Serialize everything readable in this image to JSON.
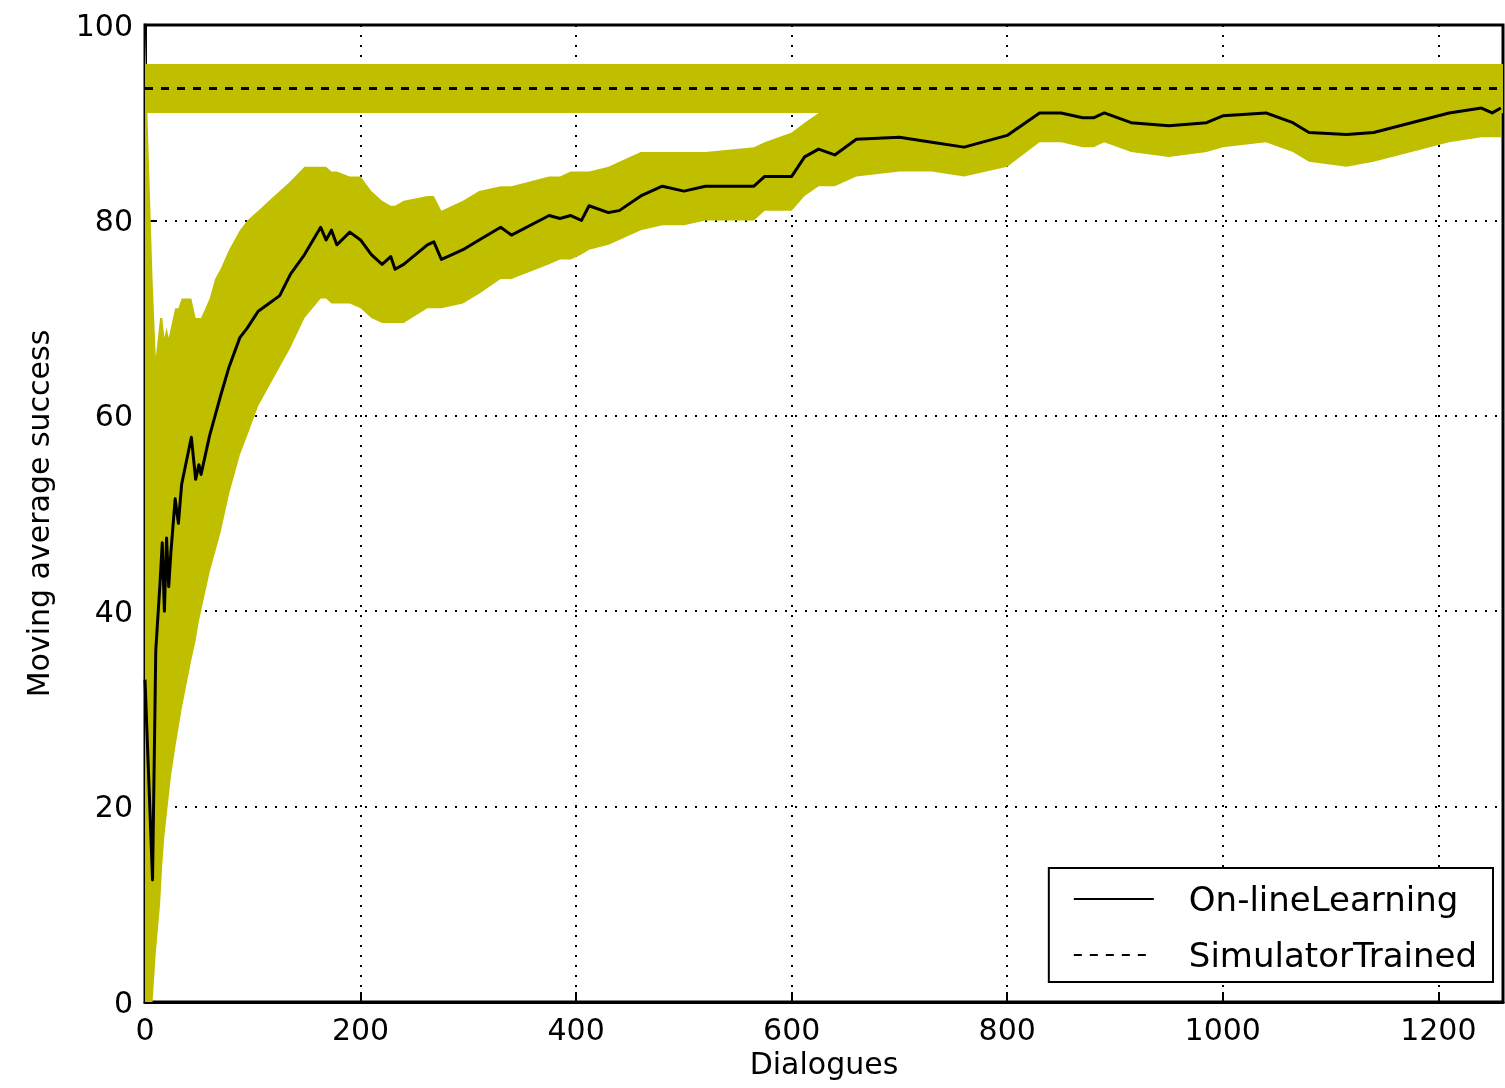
{
  "chart_data": {
    "type": "line",
    "xlabel": "Dialogues",
    "ylabel": "Moving average success",
    "xlim": [
      0,
      1260
    ],
    "xticks": [
      0,
      200,
      400,
      600,
      800,
      1000,
      1200
    ],
    "ylim": [
      0,
      100
    ],
    "yticks": [
      0,
      20,
      40,
      60,
      80,
      100
    ],
    "grid": true,
    "legend": "bottom right",
    "marker": "none",
    "series": [
      {
        "name": "On-lineLearning",
        "color": "#000000",
        "line_style": "solid",
        "x": [
          0,
          7,
          10,
          14,
          16,
          18,
          20,
          22,
          24,
          28,
          31,
          34,
          43,
          47,
          50,
          52,
          56,
          60,
          65,
          70,
          78,
          88,
          95,
          105,
          115,
          125,
          135,
          148,
          163,
          168,
          173,
          178,
          190,
          200,
          210,
          220,
          228,
          232,
          240,
          262,
          268,
          275,
          295,
          310,
          330,
          340,
          375,
          385,
          395,
          405,
          412,
          430,
          440,
          460,
          480,
          500,
          520,
          565,
          575,
          600,
          612,
          625,
          640,
          660,
          700,
          730,
          760,
          800,
          830,
          850,
          870,
          880,
          890,
          915,
          950,
          985,
          1000,
          1040,
          1065,
          1080,
          1115,
          1140,
          1175,
          1210,
          1240,
          1250,
          1258
        ],
        "values": [
          33,
          12.5,
          36,
          43,
          47,
          40,
          47.5,
          42.5,
          46,
          51.5,
          49,
          53,
          57.8,
          53.5,
          55,
          54,
          56,
          58,
          60,
          62,
          65,
          68,
          69,
          70.7,
          71.5,
          72.3,
          74.5,
          76.5,
          79.3,
          78,
          79,
          77.5,
          78.8,
          78,
          76.5,
          75.5,
          76.3,
          75,
          75.5,
          77.5,
          77.8,
          76,
          77,
          78,
          79.3,
          78.5,
          80.5,
          80.2,
          80.5,
          80,
          81.5,
          80.8,
          81,
          82.5,
          83.5,
          83,
          83.5,
          83.5,
          84.5,
          84.5,
          86.5,
          87.3,
          86.7,
          88.3,
          88.5,
          88,
          87.5,
          88.7,
          91,
          91,
          90.5,
          90.5,
          91,
          90,
          89.7,
          90,
          90.7,
          91,
          90,
          89,
          88.8,
          89,
          90,
          91,
          91.5,
          91,
          91.5
        ],
        "lower": [
          0,
          0,
          5,
          10,
          14,
          17,
          19,
          21,
          23,
          26,
          28,
          30,
          35,
          37,
          39,
          40,
          42,
          44,
          46,
          48,
          52,
          56,
          58,
          61,
          63,
          65,
          67,
          70,
          72,
          72,
          71.5,
          71.5,
          71.5,
          71,
          70,
          69.5,
          69.5,
          69.5,
          69.5,
          71,
          71,
          71,
          71.5,
          72.5,
          74,
          74,
          75.5,
          76,
          76,
          76.5,
          77,
          77.5,
          78,
          79,
          79.5,
          79.5,
          80,
          80,
          81,
          81,
          82.5,
          83.5,
          83.5,
          84.5,
          85,
          85,
          84.5,
          85.5,
          88,
          88,
          87.5,
          87.5,
          88,
          87,
          86.5,
          87,
          87.5,
          88,
          87,
          86,
          85.5,
          86,
          87,
          88,
          88.5,
          88.5,
          88.5
        ],
        "upper": [
          99,
          74,
          66,
          70,
          70,
          68,
          69,
          68,
          69,
          71,
          71,
          72,
          72,
          70,
          70,
          70,
          71,
          72,
          74,
          75,
          77,
          79,
          80,
          81,
          82,
          83,
          84,
          85.5,
          85.5,
          85.5,
          85,
          85,
          84.5,
          84.5,
          83,
          82,
          81.5,
          81.5,
          82,
          82.5,
          82.5,
          81,
          82,
          83,
          83.5,
          83.5,
          84.5,
          84.5,
          85,
          85,
          85,
          85.5,
          86,
          87,
          87,
          87,
          87,
          87.5,
          88,
          89,
          90,
          91,
          91,
          91,
          91,
          91,
          91,
          91,
          91,
          91,
          91,
          91,
          91,
          91,
          91,
          91,
          91,
          91,
          91,
          91,
          91,
          91,
          91,
          91,
          91,
          91,
          91
        ]
      },
      {
        "name": "SimulatorTrained",
        "color": "#000000",
        "line_style": "dashed",
        "x": [
          0,
          1260
        ],
        "values": [
          93.5,
          93.5
        ]
      }
    ],
    "bands": [
      {
        "axis": "y",
        "from": 91,
        "to": 96,
        "color": "#bfbf00"
      }
    ]
  }
}
